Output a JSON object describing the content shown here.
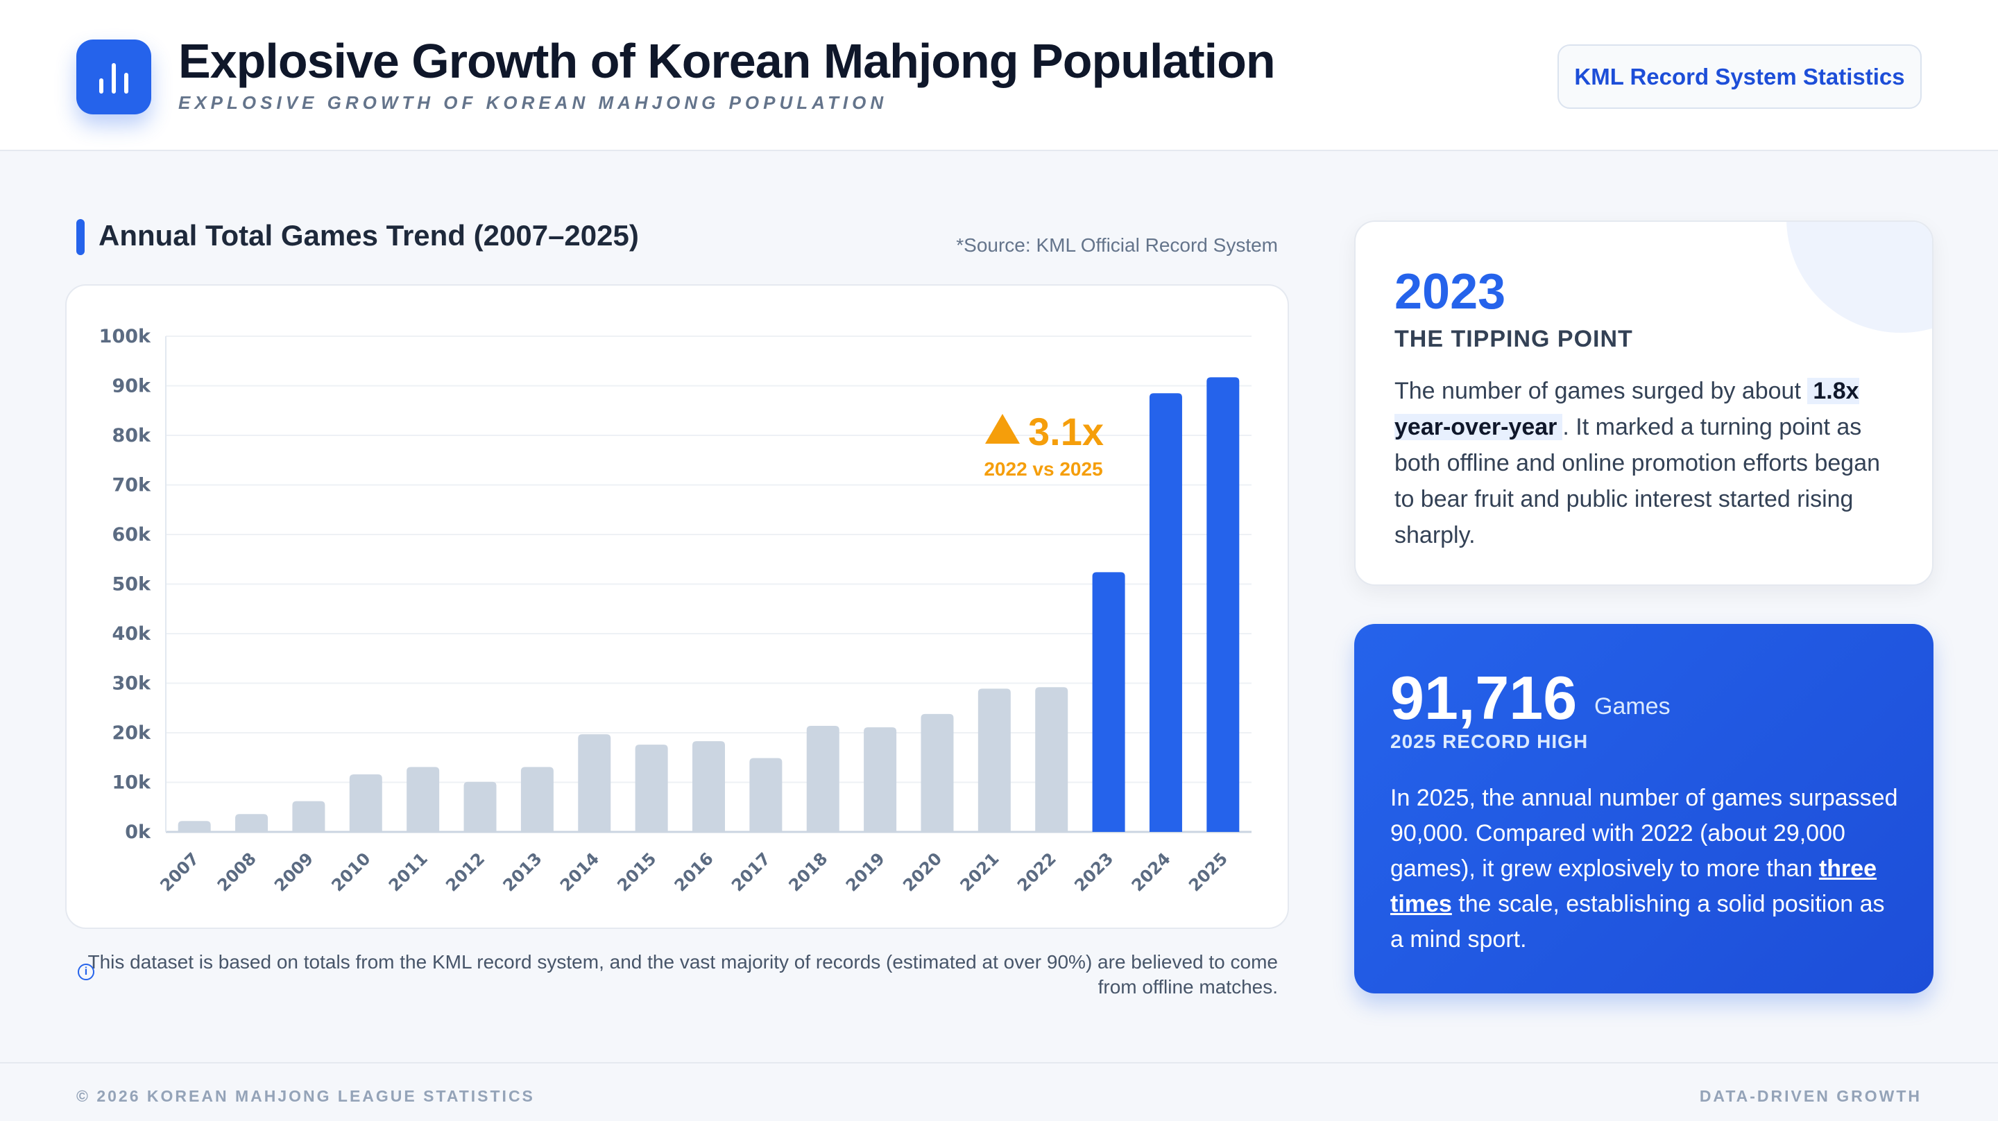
{
  "header": {
    "title": "Explosive Growth of Korean Mahjong Population",
    "subtitle": "EXPLOSIVE GROWTH OF KOREAN MAHJONG POPULATION",
    "badge": "KML Record System Statistics"
  },
  "section": {
    "title": "Annual Total Games Trend (2007–2025)",
    "source": "*Source: KML Official Record System"
  },
  "note": "This dataset is based on totals from the KML record system, and the vast majority of records (estimated at over 90%) are believed to come from offline matches.",
  "card1": {
    "year": "2023",
    "subtitle": "THE TIPPING POINT",
    "body_pre": "The number of games surged by about",
    "highlight": "1.8x year-over-year",
    "body_post": ". It marked a turning point as both offline and online promotion efforts began to bear fruit and public interest started rising sharply."
  },
  "card2": {
    "number": "91,716",
    "unit": "Games",
    "subtitle": "2025 RECORD HIGH",
    "body_pre": "In 2025, the annual number of games surpassed 90,000. Compared with 2022 (about 29,000 games), it grew explosively to more than",
    "emphasis": "three times",
    "body_post": "the scale, establishing a solid position as a mind sport."
  },
  "footer": {
    "left": "© 2026 KOREAN MAHJONG LEAGUE STATISTICS",
    "right": "DATA-DRIVEN GROWTH"
  },
  "colors": {
    "accent": "#2563eb",
    "muted_bar": "#cbd5e1",
    "annotation": "#f59e0b"
  },
  "chart_data": {
    "type": "bar",
    "title": "Annual Total Games Trend (2007–2025)",
    "xlabel": "",
    "ylabel": "",
    "categories": [
      "2007",
      "2008",
      "2009",
      "2010",
      "2011",
      "2012",
      "2013",
      "2014",
      "2015",
      "2016",
      "2017",
      "2018",
      "2019",
      "2020",
      "2021",
      "2022",
      "2023",
      "2024",
      "2025"
    ],
    "values": [
      2200,
      3600,
      6200,
      11600,
      13100,
      10100,
      13100,
      19700,
      17600,
      18300,
      14900,
      21400,
      21100,
      23800,
      28900,
      29200,
      52400,
      88500,
      91716
    ],
    "highlighted": [
      "2023",
      "2024",
      "2025"
    ],
    "ylim": [
      0,
      100000
    ],
    "yticks": [
      "0k",
      "10k",
      "20k",
      "30k",
      "40k",
      "50k",
      "60k",
      "70k",
      "80k",
      "90k",
      "100k"
    ],
    "grid": true,
    "annotation": {
      "value": "3.1x",
      "label": "2022 vs 2025"
    }
  }
}
